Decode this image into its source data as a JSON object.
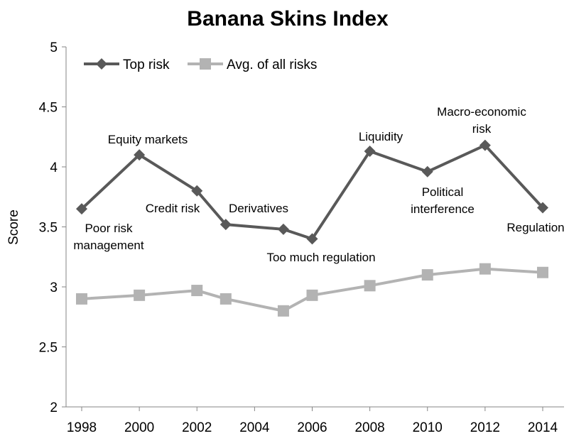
{
  "chart_data": {
    "type": "line",
    "title": "Banana Skins Index",
    "xlabel": "",
    "ylabel": "Score",
    "ylim": [
      2,
      5
    ],
    "xlim": [
      1998,
      2014
    ],
    "x_ticks": [
      "1998",
      "2000",
      "2002",
      "2004",
      "2006",
      "2008",
      "2010",
      "2012",
      "2014"
    ],
    "y_ticks": [
      "2",
      "2.5",
      "3",
      "3.5",
      "4",
      "4.5",
      "5"
    ],
    "grid": false,
    "legend_position": "top-left",
    "series": [
      {
        "name": "Top risk",
        "color": "#595959",
        "marker": "diamond",
        "points": [
          {
            "x": 1998,
            "y": 3.65
          },
          {
            "x": 2000,
            "y": 4.1
          },
          {
            "x": 2002,
            "y": 3.8
          },
          {
            "x": 2003,
            "y": 3.52
          },
          {
            "x": 2005,
            "y": 3.48
          },
          {
            "x": 2006,
            "y": 3.4
          },
          {
            "x": 2008,
            "y": 4.13
          },
          {
            "x": 2010,
            "y": 3.96
          },
          {
            "x": 2012,
            "y": 4.18
          },
          {
            "x": 2014,
            "y": 3.66
          }
        ]
      },
      {
        "name": "Avg. of all risks",
        "color": "#b3b3b3",
        "marker": "square",
        "points": [
          {
            "x": 1998,
            "y": 2.9
          },
          {
            "x": 2000,
            "y": 2.93
          },
          {
            "x": 2002,
            "y": 2.97
          },
          {
            "x": 2003,
            "y": 2.9
          },
          {
            "x": 2005,
            "y": 2.8
          },
          {
            "x": 2006,
            "y": 2.93
          },
          {
            "x": 2008,
            "y": 3.01
          },
          {
            "x": 2010,
            "y": 3.1
          },
          {
            "x": 2012,
            "y": 3.15
          },
          {
            "x": 2014,
            "y": 3.12
          }
        ]
      }
    ],
    "annotations": [
      {
        "lines": [
          "Poor risk",
          "management"
        ]
      },
      {
        "lines": [
          "Equity markets"
        ]
      },
      {
        "lines": [
          "Credit risk"
        ]
      },
      {
        "lines": [
          "Derivatives"
        ]
      },
      {
        "lines": [
          "Too much regulation"
        ]
      },
      {
        "lines": [
          "Liquidity"
        ]
      },
      {
        "lines": [
          "Political",
          "interference"
        ]
      },
      {
        "lines": [
          "Macro-economic",
          "risk"
        ]
      },
      {
        "lines": [
          "Regulation"
        ]
      }
    ]
  }
}
